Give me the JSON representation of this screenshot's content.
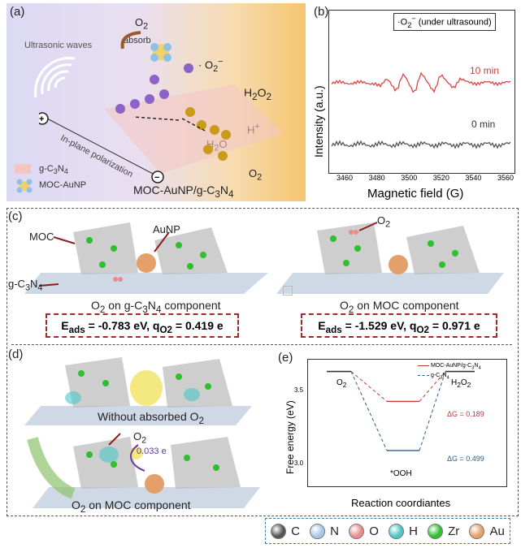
{
  "panel_a": {
    "label": "(a)",
    "o2": "O",
    "absorb": "absorb",
    "superoxide": "· O",
    "ultrasonic": "Ultrasonic waves",
    "h2o2": "H",
    "hplus": "H",
    "h2o": "H",
    "o2_out": "O",
    "polarization": "In-plane polarization",
    "legend_gcn": "g-C",
    "legend_moc": "MOC-AuNP",
    "composite": "MOC-AuNP/g-C"
  },
  "panel_b": {
    "label": "(b)",
    "legend": "·O",
    "legend_suffix": "(under ultrasound)",
    "ylabel": "Intensity (a.u.)",
    "xlabel": "Magnetic field (G)",
    "ticks": [
      "3460",
      "3480",
      "3500",
      "3520",
      "3540",
      "3560"
    ],
    "trace_top_label": "10 min",
    "trace_bottom_label": "0 min",
    "color_top": "#e04545",
    "color_bottom": "#555555"
  },
  "panel_c": {
    "label": "(c)",
    "moc": "MOC",
    "aunp": "AuNP",
    "gcn": "g-C",
    "o2": "O",
    "caption_left": "O",
    "caption_left_suffix": "on g-C",
    "caption_left_end": "component",
    "caption_right": "O",
    "caption_right_suffix": "on MOC component",
    "eads_left": "E",
    "eads_left_val": "= -0.783 eV, q",
    "eads_left_q": "= 0.419 e",
    "eads_right_val": "= -1.529 eV, q",
    "eads_right_q": "= 0.971 e"
  },
  "panel_d": {
    "label": "(d)",
    "caption_top": "Without absorbed O",
    "o2": "O",
    "charge": "0.033 e",
    "caption_bottom": "O",
    "caption_bottom_suffix": "on MOC component"
  },
  "panel_e": {
    "label": "(e)",
    "ylabel": "Free energy (eV)",
    "xlabel": "Reaction coordiantes",
    "o2": "O",
    "h2o2": "H",
    "ooh": "*OOH",
    "legend1": "MOC-AuNP/g-C",
    "legend2": "g-C",
    "dg1": "ΔG = 0.189",
    "dg2": "ΔG = 0.499",
    "yticks": [
      "3.5",
      "3.0"
    ],
    "color1": "#c0393b",
    "color2": "#2d5f8b"
  },
  "chart_data": {
    "type": "line",
    "xlabel": "Reaction coordiantes",
    "ylabel": "Free energy (eV)",
    "categories": [
      "O2",
      "*OOH",
      "H2O2"
    ],
    "series": [
      {
        "name": "MOC-AuNP/g-C3N4",
        "values": [
          3.52,
          3.331,
          3.52
        ]
      },
      {
        "name": "g-C3N4",
        "values": [
          3.52,
          3.021,
          3.52
        ]
      }
    ],
    "ylim": [
      2.8,
      3.6
    ]
  },
  "legend_bar": {
    "items": [
      {
        "label": "C",
        "color": "#555555"
      },
      {
        "label": "N",
        "color": "#a9c6e8"
      },
      {
        "label": "O",
        "color": "#e88c8c"
      },
      {
        "label": "H",
        "color": "#4cc7c9"
      },
      {
        "label": "Zr",
        "color": "#2fbf2f"
      },
      {
        "label": "Au",
        "color": "#e3a06a"
      }
    ]
  }
}
